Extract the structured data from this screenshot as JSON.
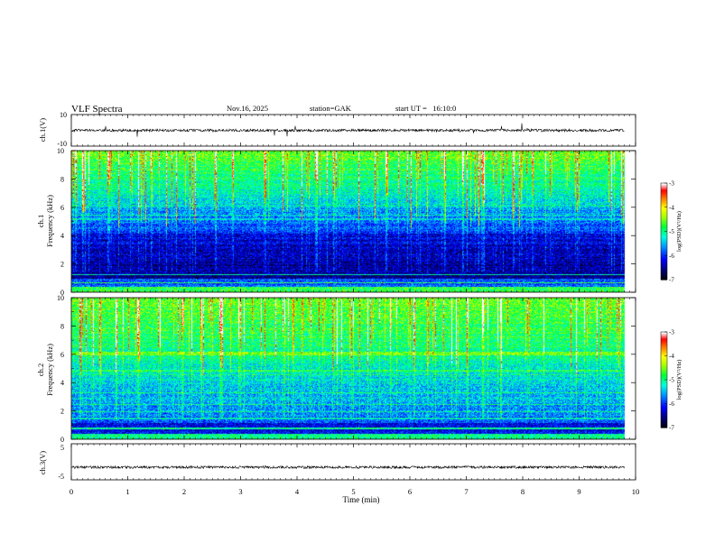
{
  "header": {
    "title": "VLF Spectra",
    "date": "Nov.16, 2025",
    "station": "station=GAK",
    "start": "start UT =   16:10:0"
  },
  "chart_data": {
    "type": "heatmap",
    "xlabel": "Time (min)",
    "xlim": [
      0,
      10
    ],
    "xticks": [
      "0",
      "1",
      "2",
      "3",
      "4",
      "5",
      "6",
      "7",
      "8",
      "9",
      "10"
    ],
    "data_end_min": 9.8,
    "panels": [
      {
        "name": "ch1-voltage",
        "ylabel": "ch.1(V)",
        "ylim": [
          -10,
          10
        ],
        "yticks": [
          "10",
          "-10"
        ],
        "baseline": 0,
        "color": "#000000"
      },
      {
        "name": "ch1-spectrogram",
        "ylabel": "ch.1\nFrequency (kHz)",
        "ylabel_line1": "ch.1",
        "ylabel_line2": "Frequency (kHz)",
        "ylim": [
          0,
          10
        ],
        "yticks": [
          "0",
          "2",
          "4",
          "6",
          "8",
          "10"
        ],
        "colorbar": {
          "label": "log(PSD)(V²/Hz)",
          "range": [
            -7,
            -3
          ],
          "ticks": [
            "-3",
            "-4",
            "-5",
            "-6",
            "-7"
          ]
        }
      },
      {
        "name": "ch2-spectrogram",
        "ylabel": "ch.2\nFrequency (kHz)",
        "ylabel_line1": "ch.2",
        "ylabel_line2": "Frequency (kHz)",
        "ylim": [
          0,
          10
        ],
        "yticks": [
          "0",
          "2",
          "4",
          "6",
          "8",
          "10"
        ],
        "colorbar": {
          "label": "log(PSD)(V²/Hz)",
          "range": [
            -7,
            -3
          ],
          "ticks": [
            "-3",
            "-4",
            "-5",
            "-6",
            "-7"
          ]
        }
      },
      {
        "name": "ch3-voltage",
        "ylabel": "ch.3(V)",
        "ylim": [
          -5,
          5
        ],
        "yticks": [
          "5",
          "-5"
        ],
        "baseline": -1.5,
        "color": "#000000"
      }
    ],
    "colormap": [
      "#000060",
      "#0000ff",
      "#00a0ff",
      "#00ffc0",
      "#00ff00",
      "#c0ff00",
      "#ffff00",
      "#ff8000",
      "#ff0000",
      "#ffffff"
    ]
  }
}
